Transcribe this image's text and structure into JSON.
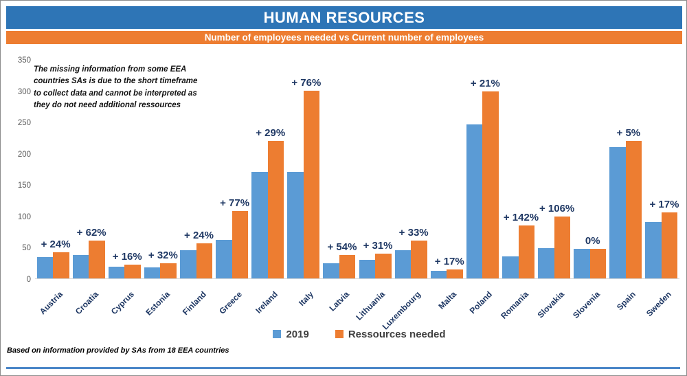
{
  "header": {
    "title": "HUMAN RESOURCES",
    "subtitle": "Number of employees needed vs Current number of employees",
    "title_bg": "#2E75B6",
    "subtitle_bg": "#ED7D31"
  },
  "annotation": "The missing information from some EEA countries SAs is due to the short timeframe to collect data and cannot be interpreted as they do not need additional ressources",
  "footnote": "Based on information provided by SAs from 18 EEA countries",
  "legend": {
    "items": [
      {
        "label": "2019",
        "color": "#5B9BD5"
      },
      {
        "label": "Ressources needed",
        "color": "#ED7D31"
      }
    ],
    "position": "bottom-center"
  },
  "chart_data": {
    "type": "bar",
    "title": "HUMAN RESOURCES",
    "subtitle": "Number of employees needed vs Current number of employees",
    "categories": [
      "Austria",
      "Croatia",
      "Cyprus",
      "Estonia",
      "Finland",
      "Greece",
      "Ireland",
      "Italy",
      "Latvia",
      "Lithuania",
      "Luxembourg",
      "Malta",
      "Poland",
      "Romania",
      "Slovakia",
      "Slovenia",
      "Spain",
      "Sweden"
    ],
    "series": [
      {
        "name": "2019",
        "color": "#5B9BD5",
        "values": [
          34,
          37,
          19,
          18,
          45,
          61,
          170,
          170,
          24,
          30,
          45,
          12,
          246,
          35,
          48,
          47,
          210,
          90
        ]
      },
      {
        "name": "Ressources needed",
        "color": "#ED7D31",
        "values": [
          42,
          60,
          22,
          24,
          56,
          108,
          220,
          300,
          37,
          39,
          60,
          14,
          298,
          85,
          99,
          47,
          220,
          105
        ]
      }
    ],
    "bar_labels": [
      "+ 24%",
      "+ 62%",
      "+ 16%",
      "+ 32%",
      "+ 24%",
      "+ 77%",
      "+ 29%",
      "+ 76%",
      "+ 54%",
      "+ 31%",
      "+ 33%",
      "+ 17%",
      "+ 21%",
      "+ 142%",
      "+ 106%",
      "0%",
      "+ 5%",
      "+ 17%"
    ],
    "xlabel": "",
    "ylabel": "",
    "ylim": [
      0,
      350
    ],
    "yticks": [
      0,
      50,
      100,
      150,
      200,
      250,
      300,
      350
    ],
    "grid": false,
    "label_color": "#1F3864",
    "axis_text_color": "#595959",
    "legend_position": "bottom"
  }
}
